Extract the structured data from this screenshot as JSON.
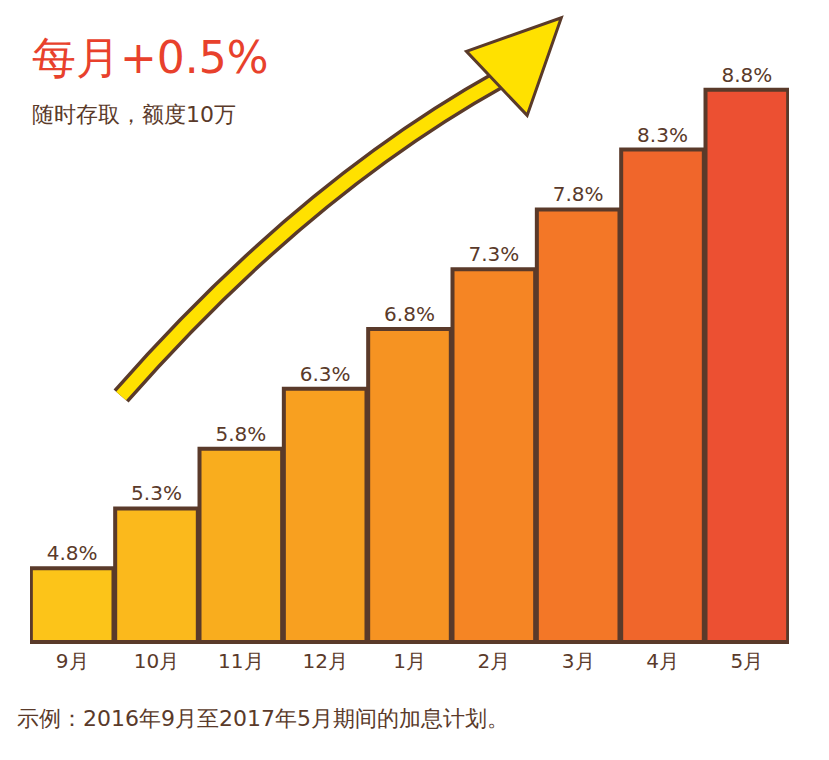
{
  "chart_data": {
    "type": "bar",
    "title": "每月+0.5%",
    "subtitle": "随时存取，额度10万",
    "annotations": [
      "示例：2016年9月至2017年5月期间的加息计划。"
    ],
    "categories": [
      "9月",
      "10月",
      "11月",
      "12月",
      "1月",
      "2月",
      "3月",
      "4月",
      "5月"
    ],
    "values": [
      4.8,
      5.3,
      5.8,
      6.3,
      6.8,
      7.3,
      7.8,
      8.3,
      8.8
    ],
    "value_labels": [
      "4.8%",
      "5.3%",
      "5.8%",
      "6.3%",
      "6.8%",
      "7.3%",
      "7.8%",
      "8.3%",
      "8.8%"
    ],
    "data_labels": true,
    "colors": [
      "#fcc419",
      "#fbb91c",
      "#f9ad1e",
      "#f8a020",
      "#f69322",
      "#f58524",
      "#f37727",
      "#f0662b",
      "#ec5032"
    ],
    "ylim": [
      4.2,
      9.3
    ],
    "tick_labels": "x",
    "grid": false
  }
}
